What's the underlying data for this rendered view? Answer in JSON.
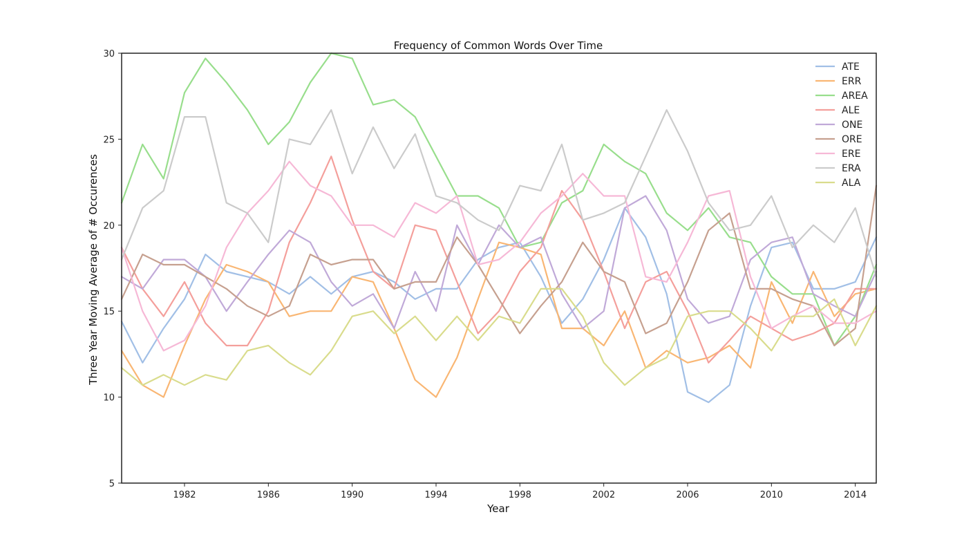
{
  "chart_data": {
    "type": "line",
    "title": "Frequency of Common Words Over Time",
    "xlabel": "Year",
    "ylabel": "Three Year Moving Average of # Occurences",
    "xlim": [
      1979,
      2015
    ],
    "ylim": [
      5,
      30
    ],
    "xticks": [
      1982,
      1986,
      1990,
      1994,
      1998,
      2002,
      2006,
      2010,
      2014
    ],
    "yticks": [
      5,
      10,
      15,
      20,
      25,
      30
    ],
    "grid": false,
    "legend_position": "top-right",
    "x": [
      1979,
      1980,
      1981,
      1982,
      1983,
      1984,
      1985,
      1986,
      1987,
      1988,
      1989,
      1990,
      1991,
      1992,
      1993,
      1994,
      1995,
      1996,
      1997,
      1998,
      1999,
      2000,
      2001,
      2002,
      2003,
      2004,
      2005,
      2006,
      2007,
      2008,
      2009,
      2010,
      2011,
      2012,
      2013,
      2014,
      2015
    ],
    "series": [
      {
        "name": "ATE",
        "color": "#a1bfe6",
        "values": [
          14.4,
          12.0,
          14.0,
          15.7,
          18.3,
          17.3,
          17.0,
          16.7,
          16.0,
          17.0,
          16.0,
          17.0,
          17.3,
          16.7,
          15.7,
          16.3,
          16.3,
          18.0,
          18.7,
          19.0,
          17.0,
          14.3,
          15.7,
          18.0,
          21.0,
          19.3,
          16.0,
          10.3,
          9.7,
          10.7,
          15.3,
          18.7,
          19.0,
          16.3,
          16.3,
          16.7,
          19.3
        ]
      },
      {
        "name": "ERR",
        "color": "#f9b673",
        "values": [
          12.7,
          10.7,
          10.0,
          13.0,
          15.7,
          17.7,
          17.3,
          16.7,
          14.7,
          15.0,
          15.0,
          17.0,
          16.7,
          14.0,
          11.0,
          10.0,
          12.3,
          15.7,
          19.0,
          18.7,
          18.3,
          14.0,
          14.0,
          13.0,
          15.0,
          11.7,
          12.7,
          12.0,
          12.3,
          13.0,
          11.7,
          16.7,
          14.3,
          17.3,
          14.7,
          16.0,
          16.3
        ]
      },
      {
        "name": "AREA",
        "color": "#98de8c",
        "values": [
          21.3,
          24.7,
          22.7,
          27.7,
          29.7,
          28.3,
          26.7,
          24.7,
          26.0,
          28.3,
          30.0,
          29.7,
          27.0,
          27.3,
          26.3,
          24.0,
          21.7,
          21.7,
          21.0,
          18.7,
          19.0,
          21.3,
          22.0,
          24.7,
          23.7,
          23.0,
          20.7,
          19.7,
          21.0,
          19.3,
          19.0,
          17.0,
          16.0,
          16.0,
          13.0,
          14.7,
          17.7
        ]
      },
      {
        "name": "ALE",
        "color": "#f49f9b",
        "values": [
          18.7,
          16.3,
          14.7,
          16.7,
          14.3,
          13.0,
          13.0,
          15.0,
          19.0,
          21.3,
          24.0,
          20.3,
          17.3,
          16.3,
          20.0,
          19.7,
          16.7,
          13.7,
          15.0,
          17.3,
          18.7,
          22.0,
          20.3,
          17.3,
          14.0,
          16.7,
          17.3,
          15.0,
          12.0,
          13.3,
          14.7,
          14.0,
          13.3,
          13.7,
          14.3,
          16.3,
          16.3
        ]
      },
      {
        "name": "ONE",
        "color": "#c0a9d8",
        "values": [
          17.0,
          16.3,
          18.0,
          18.0,
          17.0,
          15.0,
          16.7,
          18.3,
          19.7,
          19.0,
          16.7,
          15.3,
          16.0,
          14.0,
          17.3,
          15.0,
          20.0,
          17.7,
          20.0,
          18.7,
          19.3,
          16.0,
          14.0,
          15.0,
          21.0,
          21.7,
          19.7,
          15.7,
          14.3,
          14.7,
          18.0,
          19.0,
          19.3,
          16.0,
          15.3,
          14.7,
          17.3
        ]
      },
      {
        "name": "ORE",
        "color": "#c6a08f",
        "values": [
          15.7,
          18.3,
          17.7,
          17.7,
          17.0,
          16.3,
          15.3,
          14.7,
          15.3,
          18.3,
          17.7,
          18.0,
          18.0,
          16.3,
          16.7,
          16.7,
          19.3,
          17.7,
          15.7,
          13.7,
          15.3,
          16.7,
          19.0,
          17.3,
          16.7,
          13.7,
          14.3,
          16.7,
          19.7,
          20.7,
          16.3,
          16.3,
          15.7,
          15.3,
          13.0,
          14.0,
          22.3
        ]
      },
      {
        "name": "ERE",
        "color": "#f6b8d6",
        "values": [
          18.7,
          15.0,
          12.7,
          13.3,
          15.3,
          18.7,
          20.7,
          22.0,
          23.7,
          22.3,
          21.7,
          20.0,
          20.0,
          19.3,
          21.3,
          20.7,
          21.7,
          17.7,
          18.0,
          19.0,
          20.7,
          21.7,
          23.0,
          21.7,
          21.7,
          17.0,
          16.7,
          19.0,
          21.7,
          22.0,
          17.0,
          14.0,
          14.7,
          15.3,
          14.3,
          14.3,
          15.0
        ]
      },
      {
        "name": "ERA",
        "color": "#cbcbcb",
        "values": [
          18.0,
          21.0,
          22.0,
          26.3,
          26.3,
          21.3,
          20.7,
          19.0,
          25.0,
          24.7,
          26.7,
          23.0,
          25.7,
          23.3,
          25.3,
          21.7,
          21.3,
          20.3,
          19.7,
          22.3,
          22.0,
          24.7,
          20.3,
          20.7,
          21.3,
          24.0,
          26.7,
          24.3,
          21.3,
          19.7,
          20.0,
          21.7,
          18.7,
          20.0,
          19.0,
          21.0,
          17.0
        ]
      },
      {
        "name": "ALA",
        "color": "#d9dc8c",
        "values": [
          11.7,
          10.7,
          11.3,
          10.7,
          11.3,
          11.0,
          12.7,
          13.0,
          12.0,
          11.3,
          12.7,
          14.7,
          15.0,
          13.7,
          14.7,
          13.3,
          14.7,
          13.3,
          14.7,
          14.3,
          16.3,
          16.3,
          14.7,
          12.0,
          10.7,
          11.7,
          12.3,
          14.7,
          15.0,
          15.0,
          14.0,
          12.7,
          14.7,
          14.7,
          15.7,
          13.0,
          15.3
        ]
      }
    ]
  }
}
